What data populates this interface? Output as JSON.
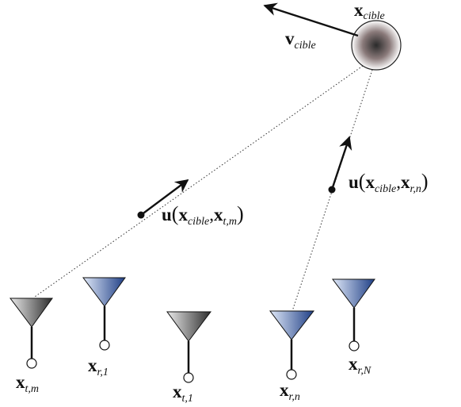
{
  "target": {
    "position_label": {
      "base": "x",
      "sub": "cible"
    },
    "velocity_label": {
      "base": "v",
      "sub": "cible"
    }
  },
  "unit_vectors": {
    "to_transmitter": {
      "func": "u",
      "open": "(",
      "arg1_base": "x",
      "arg1_sub": "cible",
      "comma": ",",
      "arg2_base": "x",
      "arg2_sub": "t,m",
      "close": ")"
    },
    "to_receiver": {
      "func": "u",
      "open": "(",
      "arg1_base": "x",
      "arg1_sub": "cible",
      "comma": ",",
      "arg2_base": "x",
      "arg2_sub": "r,n",
      "close": ")"
    }
  },
  "antennas": [
    {
      "kind": "transmitter",
      "label": {
        "base": "x",
        "sub": "t,m"
      }
    },
    {
      "kind": "receiver",
      "label": {
        "base": "x",
        "sub": "r,1"
      }
    },
    {
      "kind": "transmitter",
      "label": {
        "base": "x",
        "sub": "t,1"
      }
    },
    {
      "kind": "receiver",
      "label": {
        "base": "x",
        "sub": "r,n"
      }
    },
    {
      "kind": "receiver",
      "label": {
        "base": "x",
        "sub": "r,N"
      }
    }
  ],
  "colors": {
    "transmitter_dark": "#2e2e2e",
    "transmitter_light": "#e8e8e8",
    "receiver_dark": "#1f3f86",
    "receiver_light": "#dfe8f8",
    "target_core": "#2a2a2a",
    "ink": "#111111"
  }
}
